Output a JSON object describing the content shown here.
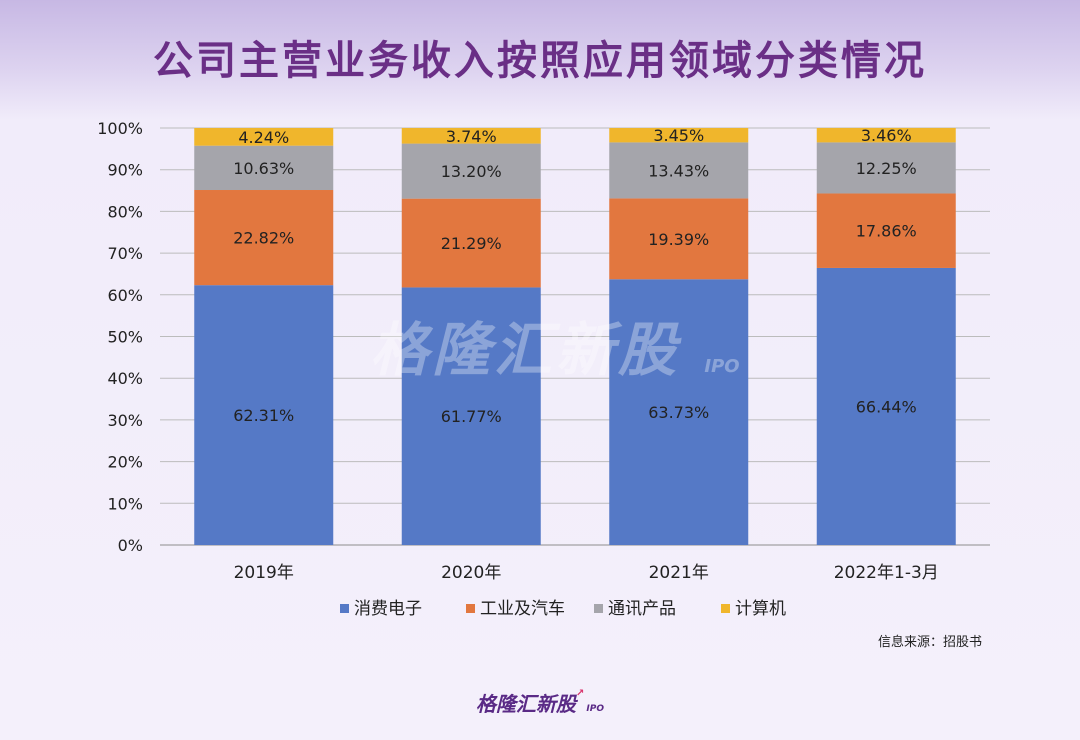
{
  "title": "公司主营业务收入按照应用领域分类情况",
  "source": "信息来源：招股书",
  "watermark": {
    "text": "格隆汇新股",
    "sub": "IPO"
  },
  "footer_logo": {
    "text": "格隆汇新股",
    "sub": "IPO"
  },
  "colors": {
    "消费电子": "#5579c6",
    "工业及汽车": "#e2773f",
    "通讯产品": "#a5a5ab",
    "计算机": "#f0b62c",
    "grid": "#bcbcbc",
    "text": "#222222"
  },
  "chart_data": {
    "type": "bar",
    "stacked": true,
    "percent": true,
    "categories": [
      "2019年",
      "2020年",
      "2021年",
      "2022年1-3月"
    ],
    "series": [
      {
        "name": "消费电子",
        "values": [
          62.31,
          61.77,
          63.73,
          66.44
        ],
        "labels": [
          "62.31%",
          "61.77%",
          "63.73%",
          "66.44%"
        ]
      },
      {
        "name": "工业及汽车",
        "values": [
          22.82,
          21.29,
          19.39,
          17.86
        ],
        "labels": [
          "22.82%",
          "21.29%",
          "19.39%",
          "17.86%"
        ]
      },
      {
        "name": "通讯产品",
        "values": [
          10.63,
          13.2,
          13.43,
          12.25
        ],
        "labels": [
          "10.63%",
          "13.20%",
          "13.43%",
          "12.25%"
        ]
      },
      {
        "name": "计算机",
        "values": [
          4.24,
          3.74,
          3.45,
          3.46
        ],
        "labels": [
          "4.24%",
          "3.74%",
          "3.45%",
          "3.46%"
        ]
      }
    ],
    "yticks": [
      "0%",
      "10%",
      "20%",
      "30%",
      "40%",
      "50%",
      "60%",
      "70%",
      "80%",
      "90%",
      "100%"
    ],
    "ylim": [
      0,
      100
    ],
    "grid": true,
    "legend_position": "bottom"
  }
}
